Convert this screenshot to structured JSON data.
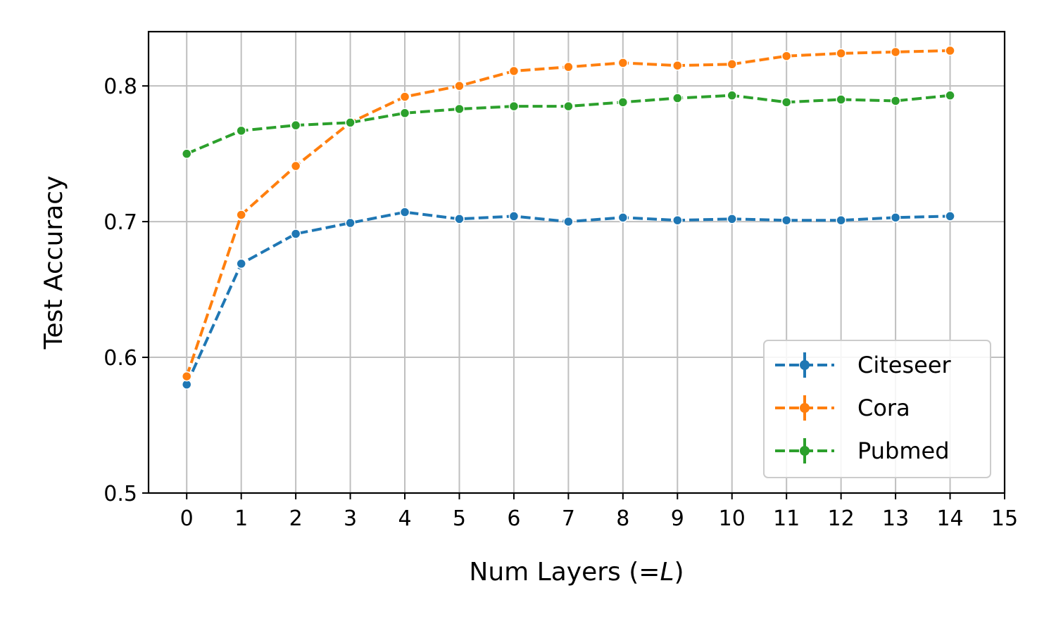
{
  "chart_data": {
    "type": "line",
    "title": "",
    "xlabel": "Num Layers (=",
    "xlabel_var": "L",
    "xlabel_end": ")",
    "ylabel": "Test Accuracy",
    "xlim": [
      -0.7,
      15
    ],
    "ylim": [
      0.5,
      0.84
    ],
    "x_ticks": [
      0,
      1,
      2,
      3,
      4,
      5,
      6,
      7,
      8,
      9,
      10,
      11,
      12,
      13,
      14,
      15
    ],
    "y_ticks": [
      0.5,
      0.6,
      0.7,
      0.8
    ],
    "y_tick_labels": [
      "0.5",
      "0.6",
      "0.7",
      "0.8"
    ],
    "grid": true,
    "legend_position": "lower-right",
    "x": [
      0,
      1,
      2,
      3,
      4,
      5,
      6,
      7,
      8,
      9,
      10,
      11,
      12,
      13,
      14
    ],
    "series": [
      {
        "name": "Citeseer",
        "color": "#1f77b4",
        "values": [
          0.58,
          0.669,
          0.691,
          0.699,
          0.707,
          0.702,
          0.704,
          0.7,
          0.703,
          0.701,
          0.702,
          0.701,
          0.701,
          0.703,
          0.704
        ]
      },
      {
        "name": "Cora",
        "color": "#ff7f0e",
        "values": [
          0.586,
          0.705,
          0.741,
          0.773,
          0.792,
          0.8,
          0.811,
          0.814,
          0.817,
          0.815,
          0.816,
          0.822,
          0.824,
          0.825,
          0.826
        ]
      },
      {
        "name": "Pubmed",
        "color": "#2ca02c",
        "values": [
          0.75,
          0.767,
          0.771,
          0.773,
          0.78,
          0.783,
          0.785,
          0.785,
          0.788,
          0.791,
          0.793,
          0.788,
          0.79,
          0.789,
          0.793
        ]
      }
    ]
  }
}
